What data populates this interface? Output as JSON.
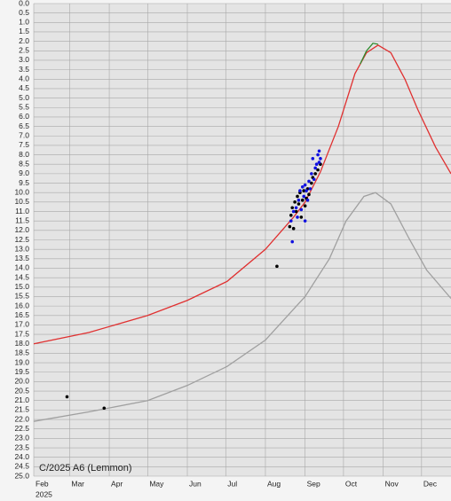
{
  "chart_data": {
    "type": "line",
    "annotation": "C/2025 A6 (Lemmon)",
    "x_sublabel": "2025",
    "xlim": [
      32,
      358
    ],
    "xticks": [
      {
        "value": 32,
        "label": "Feb"
      },
      {
        "value": 60,
        "label": "Mar"
      },
      {
        "value": 91,
        "label": "Apr"
      },
      {
        "value": 121,
        "label": "May"
      },
      {
        "value": 152,
        "label": "Jun"
      },
      {
        "value": 182,
        "label": "Jul"
      },
      {
        "value": 213,
        "label": "Aug"
      },
      {
        "value": 244,
        "label": "Sep"
      },
      {
        "value": 274,
        "label": "Oct"
      },
      {
        "value": 305,
        "label": "Nov"
      },
      {
        "value": 335,
        "label": "Dec"
      }
    ],
    "ylim": [
      0,
      25
    ],
    "y_inverted": true,
    "grid": true,
    "yticks": [
      {
        "value": 0,
        "label": "0.0"
      },
      0.5,
      {
        "value": 1,
        "label": "1.0"
      },
      1.5,
      {
        "value": 2,
        "label": "2.0"
      },
      2.5,
      {
        "value": 3,
        "label": "3.0"
      },
      3.5,
      {
        "value": 4,
        "label": "4.0"
      },
      4.5,
      {
        "value": 5,
        "label": "5.0"
      },
      5.5,
      {
        "value": 6,
        "label": "6.0"
      },
      6.5,
      {
        "value": 7,
        "label": "7.0"
      },
      7.5,
      {
        "value": 8,
        "label": "8.0"
      },
      8.5,
      {
        "value": 9,
        "label": "9.0"
      },
      9.5,
      {
        "value": 10,
        "label": "10.0"
      },
      10.5,
      {
        "value": 11,
        "label": "11.0"
      },
      11.5,
      {
        "value": 12,
        "label": "12.0"
      },
      12.5,
      {
        "value": 13,
        "label": "13.0"
      },
      13.5,
      {
        "value": 14,
        "label": "14.0"
      },
      14.5,
      {
        "value": 15,
        "label": "15.0"
      },
      15.5,
      {
        "value": 16,
        "label": "16.0"
      },
      16.5,
      {
        "value": 17,
        "label": "17.0"
      },
      17.5,
      {
        "value": 18,
        "label": "18.0"
      },
      18.5,
      {
        "value": 19,
        "label": "19.0"
      },
      19.5,
      {
        "value": 20,
        "label": "20.0"
      },
      20.5,
      {
        "value": 21,
        "label": "21.0"
      },
      21.5,
      {
        "value": 22,
        "label": "22.0"
      },
      22.5,
      {
        "value": 23,
        "label": "23.0"
      },
      23.5,
      {
        "value": 24,
        "label": "24.0"
      },
      24.5,
      {
        "value": 25,
        "label": "25.0"
      }
    ],
    "series": [
      {
        "kind": "line",
        "color": "#a0a0a0",
        "x": [
          32,
          75,
          121,
          152,
          183,
          213,
          244,
          263,
          276,
          290,
          299,
          311,
          325,
          339,
          358
        ],
        "values": [
          22.1,
          21.6,
          21.0,
          20.2,
          19.2,
          17.8,
          15.5,
          13.5,
          11.5,
          10.2,
          10.0,
          10.6,
          12.4,
          14.1,
          15.6
        ]
      },
      {
        "kind": "line",
        "color": "#e03030",
        "x": [
          32,
          75,
          121,
          152,
          183,
          213,
          235,
          244,
          256,
          270,
          283,
          292,
          301,
          311,
          322,
          332,
          346,
          358
        ],
        "values": [
          18.0,
          17.4,
          16.5,
          15.7,
          14.7,
          13.0,
          11.3,
          10.5,
          8.9,
          6.5,
          3.7,
          2.6,
          2.2,
          2.6,
          4.0,
          5.6,
          7.6,
          9.0
        ]
      },
      {
        "kind": "line",
        "color": "#2e8b2e",
        "x": [
          287,
          292,
          297,
          301
        ],
        "values": [
          3.2,
          2.5,
          2.1,
          2.15
        ]
      },
      {
        "kind": "points",
        "color": "#000000",
        "x": [
          58,
          87,
          222,
          232,
          235,
          233,
          234,
          236,
          237,
          238,
          239,
          240,
          241,
          242,
          243,
          244,
          245,
          246,
          247,
          249,
          250,
          252,
          254,
          256
        ],
        "values": [
          20.8,
          21.4,
          13.9,
          11.8,
          11.9,
          11.2,
          10.8,
          10.5,
          11.0,
          10.2,
          10.6,
          10.0,
          11.3,
          10.4,
          9.9,
          10.7,
          10.3,
          9.8,
          10.1,
          9.5,
          9.2,
          9.0,
          8.8,
          8.5
        ]
      },
      {
        "kind": "points",
        "color": "#1010e0",
        "x": [
          234,
          233,
          235,
          237,
          238,
          239,
          240,
          241,
          242,
          243,
          244,
          245,
          246,
          247,
          248,
          249,
          250,
          251,
          252,
          253,
          254,
          255,
          256,
          255,
          244
        ],
        "values": [
          12.6,
          11.5,
          11.0,
          10.8,
          11.3,
          10.4,
          9.9,
          10.9,
          9.7,
          10.2,
          9.6,
          9.9,
          10.4,
          9.4,
          9.8,
          9.0,
          8.2,
          9.3,
          8.7,
          8.5,
          8.0,
          7.8,
          8.2,
          8.4,
          11.5
        ]
      }
    ]
  }
}
